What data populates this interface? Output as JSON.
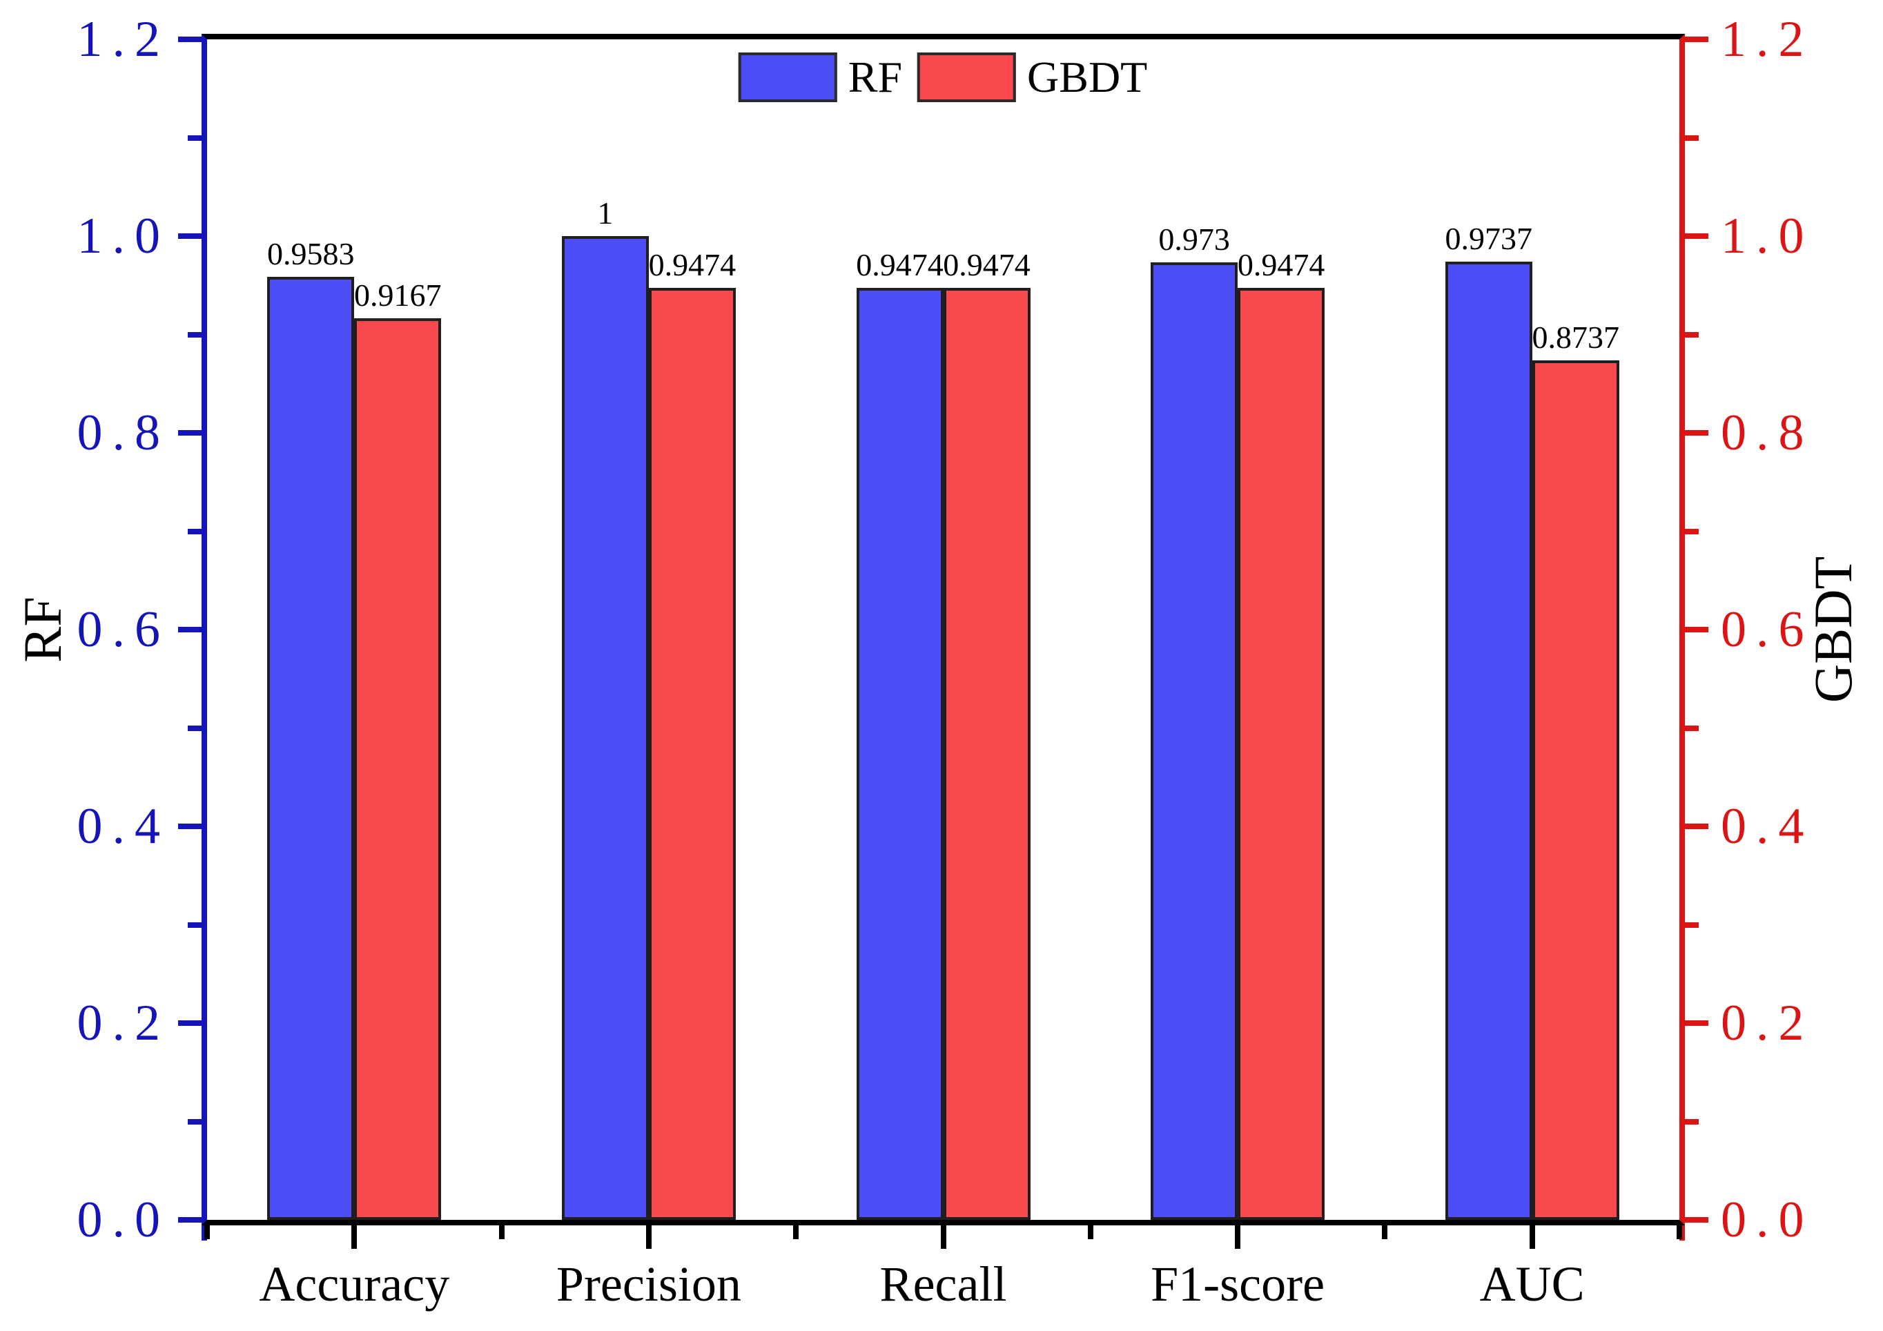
{
  "figure": {
    "background": "#ffffff"
  },
  "chart_data": {
    "type": "bar",
    "title": "",
    "grid": false,
    "categories": [
      "Accuracy",
      "Precision",
      "Recall",
      "F1-score",
      "AUC"
    ],
    "series": [
      {
        "name": "RF",
        "axis": "left",
        "color": "#4e4ef8",
        "edge_color": "#1f1f1f",
        "values": [
          0.9583,
          1,
          0.9474,
          0.973,
          0.9737
        ],
        "value_labels": [
          "0.9583",
          "1",
          "0.9474",
          "0.973",
          "0.9737"
        ]
      },
      {
        "name": "GBDT",
        "axis": "right",
        "color": "#fa4a4f",
        "edge_color": "#1f1f1f",
        "values": [
          0.9167,
          0.9474,
          0.9474,
          0.9474,
          0.8737
        ],
        "value_labels": [
          "0.9167",
          "0.9474",
          "0.9474",
          "0.9474",
          "0.8737"
        ]
      }
    ],
    "left_axis": {
      "label": "RF",
      "color": "#1414b8",
      "min": 0.0,
      "max": 1.2,
      "major_step": 0.2,
      "minor_step": 0.1,
      "tick_labels": [
        "0.0",
        "0.2",
        "0.4",
        "0.6",
        "0.8",
        "1.0",
        "1.2"
      ]
    },
    "right_axis": {
      "label": "GBDT",
      "color": "#dc1414",
      "min": 0.0,
      "max": 1.2,
      "major_step": 0.2,
      "minor_step": 0.1,
      "tick_labels": [
        "0.0",
        "0.2",
        "0.4",
        "0.6",
        "0.8",
        "1.0",
        "1.2"
      ]
    },
    "legend": {
      "position": "top-center",
      "entries": [
        {
          "label": "RF",
          "color": "#4e4ef8"
        },
        {
          "label": "GBDT",
          "color": "#fa4a4f"
        }
      ]
    }
  }
}
